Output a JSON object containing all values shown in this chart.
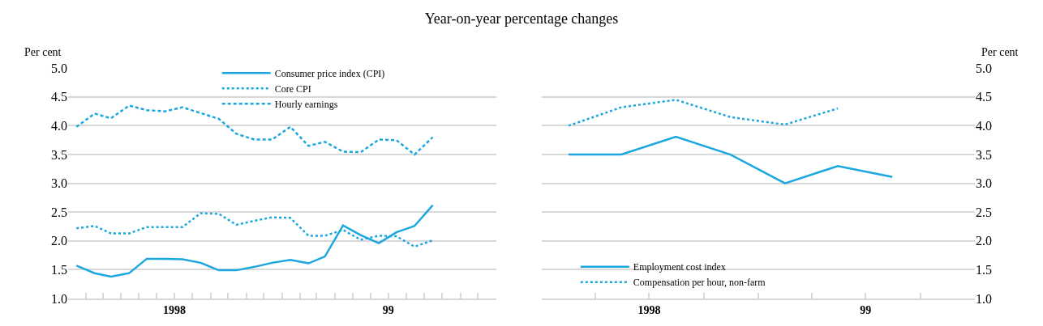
{
  "chart_data": [
    {
      "type": "line",
      "title": "Year-on-year percentage changes",
      "ylabel": "Per cent",
      "x": [
        "1998-01-15",
        "1998-02-15",
        "1998-03-15",
        "1998-04-15",
        "1998-05-15",
        "1998-06-15",
        "1998-07-15",
        "1998-08-15",
        "1998-09-15",
        "1998-10-15",
        "1998-11-15",
        "1998-12-15",
        "1999-01-15",
        "1999-02-15",
        "1999-03-15",
        "1999-04-15",
        "1999-05-15",
        "1999-06-15",
        "1999-07-15",
        "1999-08-15",
        "1999-09-15"
      ],
      "series": [
        {
          "name": "Consumer price index (CPI)",
          "color": "#1aa7e0",
          "line_style": "solid",
          "values": [
            1.57,
            1.44,
            1.38,
            1.44,
            1.69,
            1.69,
            1.68,
            1.62,
            1.49,
            1.49,
            1.55,
            1.62,
            1.67,
            1.61,
            1.73,
            2.27,
            2.1,
            1.96,
            2.15,
            2.26,
            2.62
          ]
        },
        {
          "name": "Core CPI",
          "color": "#1aa7e0",
          "line_style": "dotted",
          "values": [
            2.22,
            2.26,
            2.13,
            2.13,
            2.24,
            2.24,
            2.24,
            2.48,
            2.47,
            2.28,
            2.35,
            2.41,
            2.4,
            2.09,
            2.09,
            2.19,
            2.02,
            2.09,
            2.08,
            1.9,
            2.01
          ]
        },
        {
          "name": "Hourly earnings",
          "color": "#1aa7e0",
          "line_style": "dashed",
          "values": [
            3.98,
            4.21,
            4.13,
            4.35,
            4.27,
            4.25,
            4.32,
            4.22,
            4.12,
            3.86,
            3.76,
            3.76,
            3.98,
            3.65,
            3.72,
            3.55,
            3.54,
            3.76,
            3.75,
            3.5,
            3.8
          ]
        }
      ],
      "xlim": [
        "1998-01-01",
        "2000-01-01"
      ],
      "xticks": [
        {
          "value": "1998-02-01",
          "label": null
        },
        {
          "value": "1998-03-01",
          "label": null
        },
        {
          "value": "1998-04-01",
          "label": null
        },
        {
          "value": "1998-05-01",
          "label": null
        },
        {
          "value": "1998-06-01",
          "label": null
        },
        {
          "value": "1998-07-01",
          "label": "1998"
        },
        {
          "value": "1998-08-01",
          "label": null
        },
        {
          "value": "1998-09-01",
          "label": null
        },
        {
          "value": "1998-10-01",
          "label": null
        },
        {
          "value": "1998-11-01",
          "label": null
        },
        {
          "value": "1998-12-01",
          "label": null
        },
        {
          "value": "1999-01-01",
          "label": null
        },
        {
          "value": "1999-02-01",
          "label": null
        },
        {
          "value": "1999-03-01",
          "label": null
        },
        {
          "value": "1999-04-01",
          "label": null
        },
        {
          "value": "1999-05-01",
          "label": null
        },
        {
          "value": "1999-06-01",
          "label": null
        },
        {
          "value": "1999-07-01",
          "label": "99"
        },
        {
          "value": "1999-08-01",
          "label": null
        },
        {
          "value": "1999-09-01",
          "label": null
        },
        {
          "value": "1999-10-01",
          "label": null
        },
        {
          "value": "1999-11-01",
          "label": null
        },
        {
          "value": "1999-12-01",
          "label": null
        }
      ],
      "ylim": [
        1.0,
        5.0
      ],
      "yticks": [
        {
          "value": 1.0,
          "label": "1.0"
        },
        {
          "value": 1.5,
          "label": "1.5"
        },
        {
          "value": 2.0,
          "label": "2.0"
        },
        {
          "value": 2.5,
          "label": "2.5"
        },
        {
          "value": 3.0,
          "label": "3.0"
        },
        {
          "value": 3.5,
          "label": "3.5"
        },
        {
          "value": 4.0,
          "label": "4.0"
        },
        {
          "value": 4.5,
          "label": "4.5"
        },
        {
          "value": 5.0,
          "label": "5.0"
        }
      ],
      "grid": "y",
      "legend": "top",
      "marker": "none"
    },
    {
      "type": "line",
      "ylabel": "Per cent",
      "x": [
        "1998-02-15",
        "1998-05-15",
        "1998-08-15",
        "1998-11-15",
        "1999-02-15",
        "1999-05-15",
        "1999-08-15"
      ],
      "series": [
        {
          "name": "Employment cost index",
          "color": "#1aa7e0",
          "line_style": "solid",
          "values": [
            3.5,
            3.5,
            3.81,
            3.5,
            3.0,
            3.3,
            3.11
          ]
        },
        {
          "name": "Compensation per hour, non-farm",
          "color": "#1aa7e0",
          "line_style": "dotted",
          "values": [
            4.0,
            4.32,
            4.45,
            4.15,
            4.02,
            4.3,
            null
          ]
        }
      ],
      "xlim": [
        "1998-01-01",
        "2000-01-01"
      ],
      "xticks": [
        {
          "value": "1998-04-01",
          "label": null
        },
        {
          "value": "1998-07-01",
          "label": "1998"
        },
        {
          "value": "1998-10-01",
          "label": null
        },
        {
          "value": "1999-01-01",
          "label": null
        },
        {
          "value": "1999-04-01",
          "label": null
        },
        {
          "value": "1999-07-01",
          "label": "99"
        },
        {
          "value": "1999-10-01",
          "label": null
        }
      ],
      "ylim": [
        1.0,
        5.0
      ],
      "yticks": [
        {
          "value": 1.0,
          "label": "1.0"
        },
        {
          "value": 1.5,
          "label": "1.5"
        },
        {
          "value": 2.0,
          "label": "2.0"
        },
        {
          "value": 2.5,
          "label": "2.5"
        },
        {
          "value": 3.0,
          "label": "3.0"
        },
        {
          "value": 3.5,
          "label": "3.5"
        },
        {
          "value": 4.0,
          "label": "4.0"
        },
        {
          "value": 4.5,
          "label": "4.5"
        },
        {
          "value": 5.0,
          "label": "5.0"
        }
      ],
      "grid": "y",
      "legend": "bottom left",
      "marker": "none"
    }
  ]
}
